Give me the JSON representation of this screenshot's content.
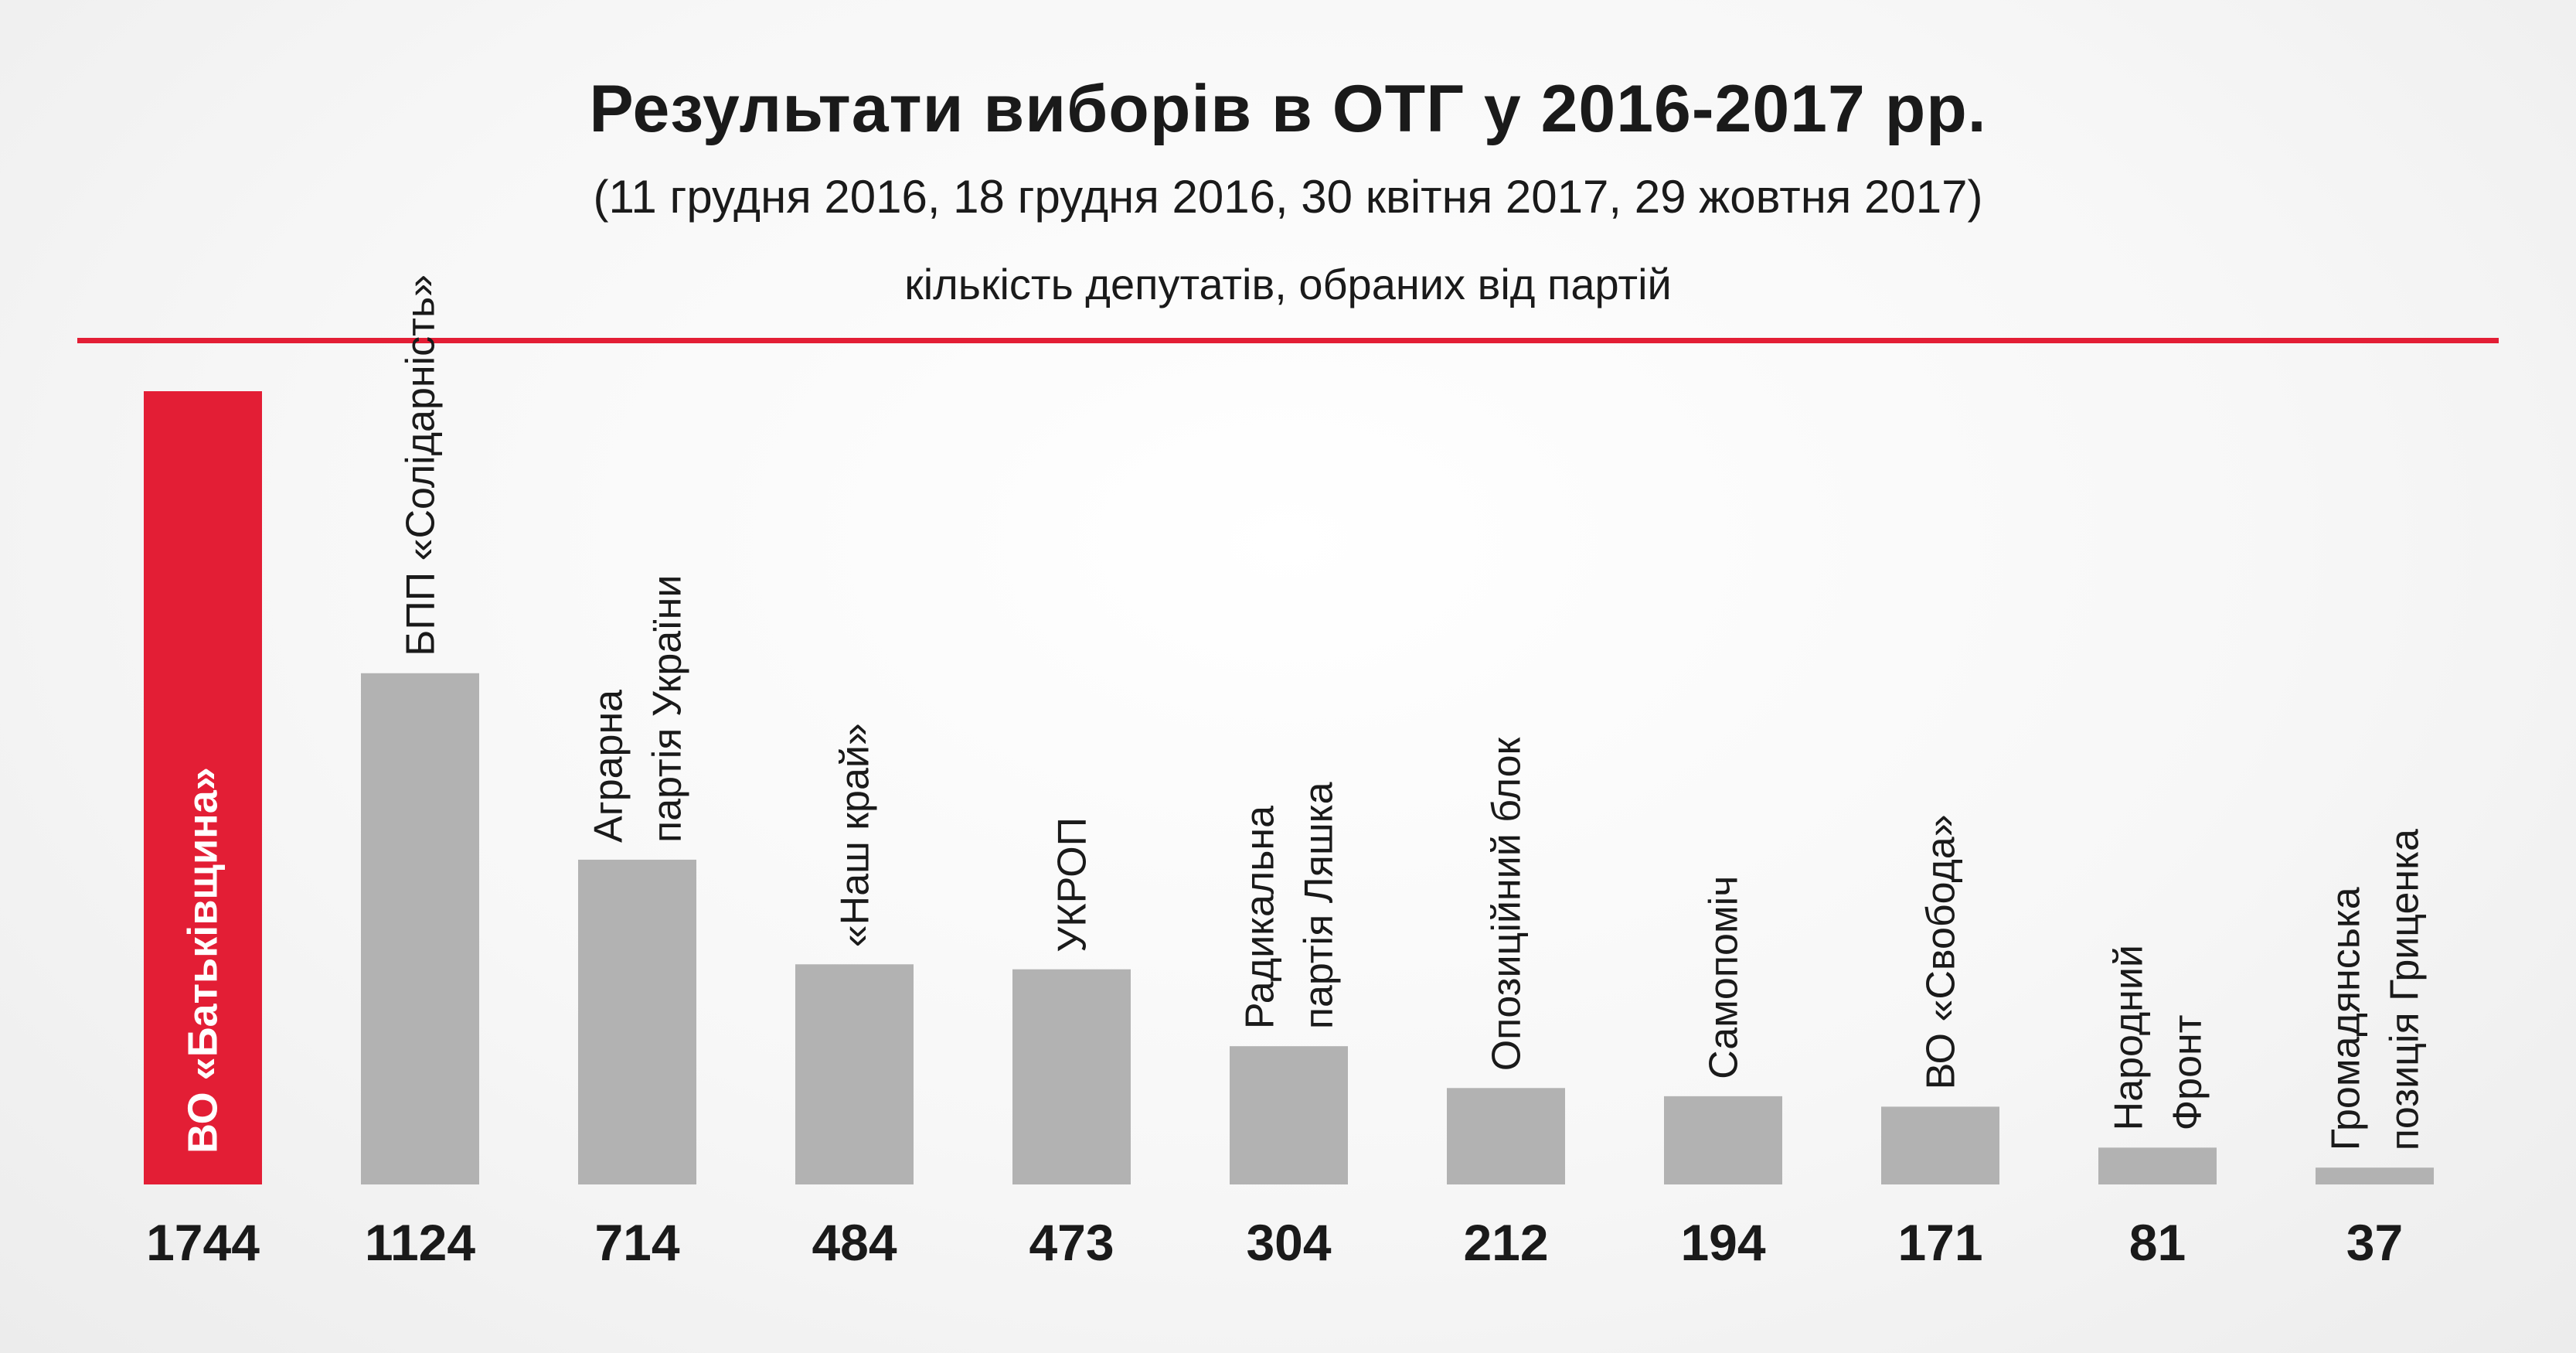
{
  "header": {
    "title": "Результати виборів в ОТГ у 2016-2017 рр.",
    "dates": "(11 грудня 2016, 18 грудня 2016, 30 квітня 2017, 29 жовтня 2017)",
    "subtitle": "кількість депутатів, обраних від партій"
  },
  "colors": {
    "accent": "#e31e35",
    "bar": "#b2b2b2",
    "text": "#1a1a1a"
  },
  "chart_data": {
    "type": "bar",
    "title": "Результати виборів в ОТГ у 2016-2017 рр.",
    "subtitle": "кількість депутатів, обраних від партій",
    "categories": [
      [
        "ВО «Батьківщина»"
      ],
      [
        "БПП «Солідарність»"
      ],
      [
        "Аграрна",
        "партія України"
      ],
      [
        "«Наш край»"
      ],
      [
        "УКРОП"
      ],
      [
        "Радикальна",
        "партія Ляшка"
      ],
      [
        "Опозиційний блок"
      ],
      [
        "Самопоміч"
      ],
      [
        "ВО «Свобода»"
      ],
      [
        "Народний",
        "Фронт"
      ],
      [
        "Громадянська",
        "позиція Гриценка"
      ]
    ],
    "values": [
      1744,
      1124,
      714,
      484,
      473,
      304,
      212,
      194,
      171,
      81,
      37
    ],
    "highlight_index": 0,
    "xlabel": "",
    "ylabel": "",
    "ylim": [
      0,
      1744
    ],
    "grid": false,
    "legend": "none"
  }
}
